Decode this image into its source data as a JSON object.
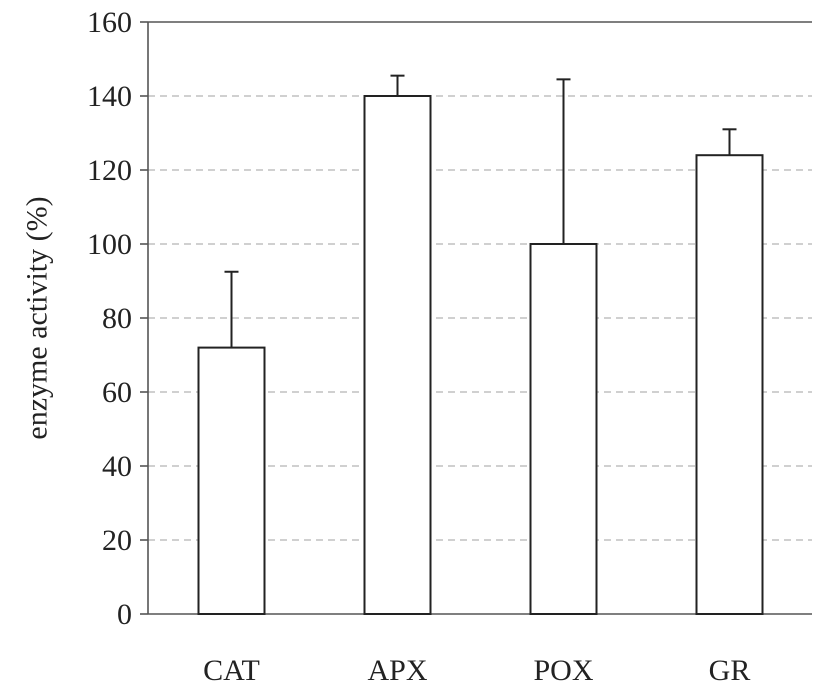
{
  "chart_data": {
    "type": "bar",
    "title": "",
    "xlabel": "",
    "ylabel": "enzyme activity (%)",
    "categories": [
      "CAT",
      "APX",
      "POX",
      "GR"
    ],
    "values": [
      72,
      140,
      100,
      124
    ],
    "error_plus": [
      20.5,
      5.5,
      44.5,
      7
    ],
    "ylim": [
      0,
      160
    ],
    "yticks": [
      0,
      20,
      40,
      60,
      80,
      100,
      120,
      140,
      160
    ],
    "ytick_labels": [
      "0",
      "20",
      "40",
      "60",
      "80",
      "100",
      "120",
      "140",
      "160"
    ],
    "grid": "horizontal dashed",
    "legend": "none",
    "colors": {
      "bar_fill": "#ffffff",
      "bar_stroke": "#222222",
      "grid": "#b5b5b5",
      "axis": "#555555"
    }
  }
}
